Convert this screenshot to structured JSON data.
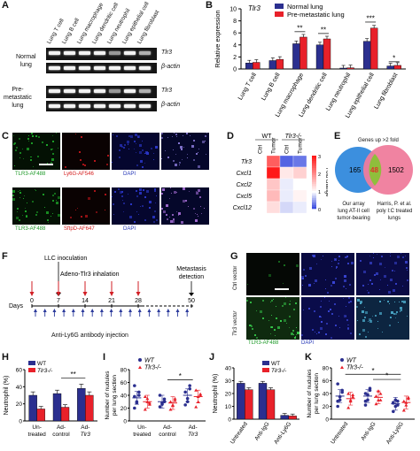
{
  "panels": {
    "A": "A",
    "B": "B",
    "C": "C",
    "D": "D",
    "E": "E",
    "F": "F",
    "G": "G",
    "H": "H",
    "I": "I",
    "J": "J",
    "K": "K"
  },
  "panel_a": {
    "lanes": [
      "Lung T cell",
      "Lung B cell",
      "Lung macrophage",
      "Lung dendritic cell",
      "Lung neutrophil",
      "Lung epithelial cell",
      "Lung fibroblast"
    ],
    "group1": "Normal\nlung",
    "group1_line1": "Normal",
    "group1_line2": "lung",
    "group2_line1": "Pre-",
    "group2_line2": "metastatic",
    "group2_line3": "lung",
    "gene1": "Tlr3",
    "gene2": "β-actin"
  },
  "panel_b": {
    "ylabel": "Relative expression",
    "gene": "Tlr3",
    "legend": [
      "Normal lung",
      "Pre-metastatic lung"
    ],
    "sig": [
      "**",
      "**",
      "***",
      "*"
    ],
    "colors": {
      "normal": "#2b2f8f",
      "premet": "#e8212a"
    }
  },
  "panel_c": {
    "row1": [
      "TLR3-AF488",
      "Ly6G-AF546",
      "DAPI",
      "Merge"
    ],
    "row2": [
      "TLR3-AF488",
      "SftpD-AF647",
      "DAPI",
      "Merge"
    ]
  },
  "panel_d": {
    "cols": [
      "Ctrl",
      "Tumor",
      "Ctrl",
      "Tumor"
    ],
    "groups": [
      "WT",
      "Tlr3-/-"
    ],
    "genes": [
      "Tlr3",
      "Cxcl1",
      "Cxcl2",
      "Cxcl5",
      "Cxcl12"
    ],
    "colorbar_label": "Fold change",
    "colorbar_ticks": [
      "3",
      "2",
      "1",
      "0"
    ]
  },
  "panel_e": {
    "title": "Genes up >2 fold",
    "left": "165",
    "overlap": "48",
    "right": "1502",
    "left_caption_1": "Our array",
    "left_caption_2": "lung AT-II cell",
    "left_caption_3": "tumor-bearing",
    "right_caption_1": "Harris, P. et al.",
    "right_caption_2": "poly I:C treated",
    "right_caption_3": "lungs"
  },
  "panel_f": {
    "step1": "LLC inoculation",
    "step2": "Adeno-Tlr3 inhalation",
    "step3_line1": "Metastasis",
    "step3_line2": "detection",
    "days_label": "Days",
    "days": [
      "0",
      "7",
      "14",
      "21",
      "28",
      "50"
    ],
    "antibody": "Anti-Ly6G antibody injection"
  },
  "panel_g": {
    "rows": [
      "Ctrl vector",
      "Tlr3 vector"
    ],
    "stains": [
      "TLR3-AF488",
      "DAPI"
    ]
  },
  "panel_h": {
    "ylabel": "Neutrophil (%)",
    "legend": [
      "WT",
      "Tlr3-/-"
    ],
    "categories": [
      "Un-\ntreated",
      "Ad-\ncontrol",
      "Ad-\nTlr3"
    ],
    "cat_labels": [
      [
        "Un-",
        "treated"
      ],
      [
        "Ad-",
        "control"
      ],
      [
        "Ad-",
        "Tlr3"
      ]
    ],
    "sig": "**",
    "yticks": [
      "0",
      "20",
      "40",
      "60"
    ]
  },
  "panel_i": {
    "ylabel_1": "Number of nudules",
    "ylabel_2": "per lung section",
    "legend": [
      "WT",
      "Tlr3-/-"
    ],
    "cat_labels": [
      [
        "Un-",
        "treated"
      ],
      [
        "Ad-",
        "control"
      ],
      [
        "Ad-",
        "Tlr3"
      ]
    ],
    "sig": "*",
    "yticks": [
      "0",
      "20",
      "40",
      "60",
      "80"
    ]
  },
  "panel_j": {
    "ylabel": "Neutrophil (%)",
    "legend": [
      "WT",
      "Tlr3-/-"
    ],
    "categories": [
      "Untreated",
      "Anti-IgG",
      "Anti-Ly6G"
    ],
    "yticks": [
      "0",
      "10",
      "20",
      "30",
      "40"
    ]
  },
  "panel_k": {
    "ylabel_1": "Number of nudules",
    "ylabel_2": "per lung section",
    "legend": [
      "WT",
      "Tlr3-/-"
    ],
    "categories": [
      "Untreated",
      "Anti-IgG",
      "Anti-Ly6G"
    ],
    "sig": [
      "*",
      "*"
    ],
    "yticks": [
      "0",
      "20",
      "40",
      "60",
      "80"
    ]
  },
  "chart_data": [
    {
      "type": "bar",
      "panel": "B",
      "title": "Tlr3",
      "ylabel": "Relative expression",
      "categories": [
        "Lung T cell",
        "Lung B cell",
        "Lung macrophage",
        "Lung dendritic cell",
        "Lung neutrophil",
        "Lung epithelial cell",
        "Lung fibroblast"
      ],
      "series": [
        {
          "name": "Normal lung",
          "values": [
            1.0,
            1.4,
            4.2,
            4.0,
            0.15,
            4.6,
            0.5
          ]
        },
        {
          "name": "Pre-metastatic lung",
          "values": [
            1.1,
            1.6,
            5.3,
            5.0,
            0.2,
            6.8,
            0.6
          ]
        }
      ],
      "ylim": [
        0,
        10
      ],
      "yticks": [
        0,
        2,
        4,
        6,
        8,
        10
      ]
    },
    {
      "type": "heatmap",
      "panel": "D",
      "columns": [
        "WT Ctrl",
        "WT Tumor",
        "Tlr3-/- Ctrl",
        "Tlr3-/- Tumor"
      ],
      "rows": [
        "Tlr3",
        "Cxcl1",
        "Cxcl2",
        "Cxcl5",
        "Cxcl12"
      ],
      "values": [
        [
          1.0,
          2.4,
          0.2,
          0.3
        ],
        [
          1.0,
          3.0,
          1.2,
          1.4
        ],
        [
          1.0,
          1.5,
          0.9,
          1.0
        ],
        [
          1.0,
          1.6,
          0.9,
          1.1
        ],
        [
          1.0,
          1.3,
          0.8,
          0.9
        ]
      ],
      "scale": [
        0,
        3
      ]
    },
    {
      "type": "bar",
      "panel": "H",
      "ylabel": "Neutrophil (%)",
      "categories": [
        "Un-treated",
        "Ad-control",
        "Ad-Tlr3"
      ],
      "series": [
        {
          "name": "WT",
          "values": [
            30,
            32,
            38
          ]
        },
        {
          "name": "Tlr3-/-",
          "values": [
            14,
            16,
            30
          ]
        }
      ],
      "errors": [
        [
          4,
          4,
          5
        ],
        [
          3,
          3,
          4
        ]
      ],
      "ylim": [
        0,
        60
      ]
    },
    {
      "type": "scatter",
      "panel": "I",
      "ylabel": "Number of nudules per lung section",
      "categories": [
        "Un-treated",
        "Ad-control",
        "Ad-Tlr3"
      ],
      "series": [
        {
          "name": "WT",
          "means": [
            36,
            30,
            40
          ],
          "points": [
            [
              20,
              30,
              40,
              55,
              28,
              45,
              38
            ],
            [
              22,
              28,
              34,
              40,
              26,
              30
            ],
            [
              25,
              35,
              55,
              45,
              30,
              50
            ]
          ]
        },
        {
          "name": "Tlr3-/-",
          "means": [
            30,
            28,
            38
          ],
          "points": [
            [
              18,
              30,
              26,
              38,
              35,
              28
            ],
            [
              18,
              25,
              35,
              30,
              24,
              32
            ],
            [
              22,
              38,
              40,
              48,
              30,
              42
            ]
          ]
        }
      ],
      "ylim": [
        0,
        80
      ]
    },
    {
      "type": "bar",
      "panel": "J",
      "ylabel": "Neutrophil (%)",
      "categories": [
        "Untreated",
        "Anti-IgG",
        "Anti-Ly6G"
      ],
      "series": [
        {
          "name": "WT",
          "values": [
            28,
            28,
            3
          ]
        },
        {
          "name": "Tlr3-/-",
          "values": [
            23,
            23,
            2.5
          ]
        }
      ],
      "ylim": [
        0,
        40
      ]
    },
    {
      "type": "scatter",
      "panel": "K",
      "ylabel": "Number of nudules per lung section",
      "categories": [
        "Untreated",
        "Anti-IgG",
        "Anti-Ly6G"
      ],
      "series": [
        {
          "name": "WT",
          "means": [
            36,
            36,
            24
          ],
          "points": [
            [
              20,
              30,
              42,
              55,
              35,
              45,
              28
            ],
            [
              22,
              30,
              45,
              40,
              38,
              48,
              28
            ],
            [
              12,
              20,
              28,
              25,
              30,
              22,
              26
            ]
          ]
        },
        {
          "name": "Tlr3-/-",
          "means": [
            32,
            34,
            26
          ],
          "points": [
            [
              18,
              28,
              35,
              40,
              30,
              38
            ],
            [
              24,
              30,
              40,
              36,
              44,
              30
            ],
            [
              14,
              22,
              32,
              28,
              26,
              34
            ]
          ]
        }
      ],
      "ylim": [
        0,
        80
      ]
    }
  ]
}
